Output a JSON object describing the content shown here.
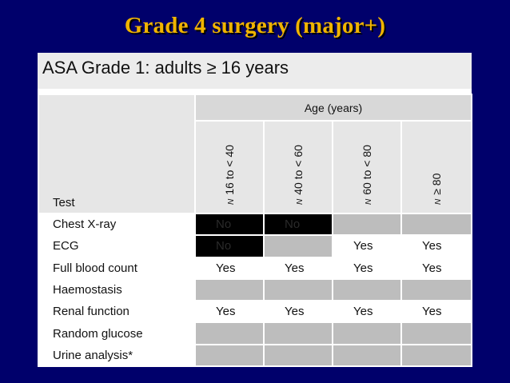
{
  "slide": {
    "title": "Grade 4 surgery (major+)"
  },
  "panel": {
    "heading": "ASA Grade 1: adults ≥ 16 years"
  },
  "table": {
    "test_header": "Test",
    "age_header": "Age (years)",
    "band_prefix": "N",
    "age_bands": [
      "16 to < 40",
      "40 to < 60",
      "60 to < 80",
      "≥ 80"
    ],
    "cell_colors": {
      "white": "#ffffff",
      "grey": "#bdbdbd",
      "black": "#000000"
    },
    "rows": [
      {
        "test": "Chest X-ray",
        "cells": [
          {
            "text": "No",
            "shade": "black"
          },
          {
            "text": "No",
            "shade": "black"
          },
          {
            "text": "",
            "shade": "grey"
          },
          {
            "text": "",
            "shade": "grey"
          }
        ]
      },
      {
        "test": "ECG",
        "cells": [
          {
            "text": "No",
            "shade": "black"
          },
          {
            "text": "",
            "shade": "grey"
          },
          {
            "text": "Yes",
            "shade": "white"
          },
          {
            "text": "Yes",
            "shade": "white"
          }
        ]
      },
      {
        "test": "Full blood count",
        "cells": [
          {
            "text": "Yes",
            "shade": "white"
          },
          {
            "text": "Yes",
            "shade": "white"
          },
          {
            "text": "Yes",
            "shade": "white"
          },
          {
            "text": "Yes",
            "shade": "white"
          }
        ]
      },
      {
        "test": "Haemostasis",
        "cells": [
          {
            "text": "",
            "shade": "grey"
          },
          {
            "text": "",
            "shade": "grey"
          },
          {
            "text": "",
            "shade": "grey"
          },
          {
            "text": "",
            "shade": "grey"
          }
        ]
      },
      {
        "test": "Renal function",
        "cells": [
          {
            "text": "Yes",
            "shade": "white"
          },
          {
            "text": "Yes",
            "shade": "white"
          },
          {
            "text": "Yes",
            "shade": "white"
          },
          {
            "text": "Yes",
            "shade": "white"
          }
        ]
      },
      {
        "test": "Random glucose",
        "cells": [
          {
            "text": "",
            "shade": "grey"
          },
          {
            "text": "",
            "shade": "grey"
          },
          {
            "text": "",
            "shade": "grey"
          },
          {
            "text": "",
            "shade": "grey"
          }
        ]
      },
      {
        "test": "Urine analysis*",
        "cells": [
          {
            "text": "",
            "shade": "grey"
          },
          {
            "text": "",
            "shade": "grey"
          },
          {
            "text": "",
            "shade": "grey"
          },
          {
            "text": "",
            "shade": "grey"
          }
        ]
      }
    ]
  }
}
